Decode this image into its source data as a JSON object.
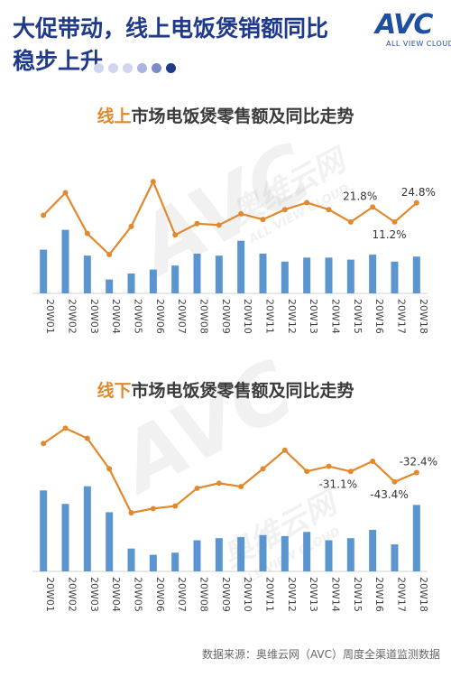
{
  "headline_line1": "大促带动，线上电饭煲销额同比",
  "headline_line2": "稳步上升",
  "logo": {
    "main": "AVC",
    "sub": "ALL VIEW CLOUD",
    "color": "#1f4fa3"
  },
  "title_dots": [
    "#cfd6ee",
    "#cfd6ee",
    "#cfd6ee",
    "#aab5dc",
    "#7c8cc8",
    "#1f3a8a"
  ],
  "colors": {
    "bar": "#5b95cf",
    "line": "#e2892e",
    "title": "#1f3a8a"
  },
  "watermark": {
    "brand": "AVC",
    "cn": "奥维云网",
    "sub": "ALL VIEW CLOUD"
  },
  "chart_data": [
    {
      "type": "bar+line",
      "title_highlight": "线上",
      "title_rest": "市场电饭煲零售额及同比走势",
      "categories": [
        "20W01",
        "20W02",
        "20W03",
        "20W04",
        "20W05",
        "20W06",
        "20W07",
        "20W08",
        "20W09",
        "20W10",
        "20W11",
        "20W12",
        "20W13",
        "20W14",
        "20W15",
        "20W16",
        "20W17",
        "20W18"
      ],
      "series": [
        {
          "kind": "bar",
          "values": [
            44,
            64,
            38,
            14,
            20,
            24,
            28,
            40,
            38,
            53,
            40,
            32,
            36,
            36,
            34,
            39,
            32,
            37
          ]
        },
        {
          "kind": "line",
          "values": [
            16,
            32,
            3,
            -12,
            8,
            40,
            2,
            10,
            9,
            17,
            13,
            20,
            25,
            20,
            11.2,
            21.8,
            11.2,
            24.8
          ]
        }
      ],
      "labels": [
        {
          "index": 15,
          "text": "21.8%"
        },
        {
          "index": 16,
          "text": "11.2%"
        },
        {
          "index": 17,
          "text": "24.8%"
        }
      ],
      "line_range": [
        -30,
        60
      ]
    },
    {
      "type": "bar+line",
      "title_highlight": "线下",
      "title_rest": "市场电饭煲零售额及同比走势",
      "categories": [
        "20W01",
        "20W02",
        "20W03",
        "20W04",
        "20W05",
        "20W06",
        "20W07",
        "20W08",
        "20W09",
        "20W10",
        "20W11",
        "20W12",
        "20W13",
        "20W14",
        "20W15",
        "20W16",
        "20W17",
        "20W18"
      ],
      "series": [
        {
          "kind": "bar",
          "values": [
            78,
            65,
            82,
            57,
            22,
            16,
            18,
            30,
            32,
            33,
            35,
            34,
            38,
            30,
            32,
            40,
            26,
            64
          ]
        },
        {
          "kind": "line",
          "values": [
            2,
            20,
            8,
            -28,
            -80,
            -75,
            -72,
            -51,
            -45,
            -49,
            -28,
            -6,
            -31,
            -25,
            -31.1,
            -19,
            -43.4,
            -32.4
          ]
        }
      ],
      "labels": [
        {
          "index": 14,
          "text": "-31.1%"
        },
        {
          "index": 16,
          "text": "-43.4%"
        },
        {
          "index": 17,
          "text": "-32.4%"
        }
      ],
      "line_range": [
        -130,
        30
      ]
    }
  ],
  "source": "数据来源：奥维云网（AVC）周度全渠道监测数据"
}
